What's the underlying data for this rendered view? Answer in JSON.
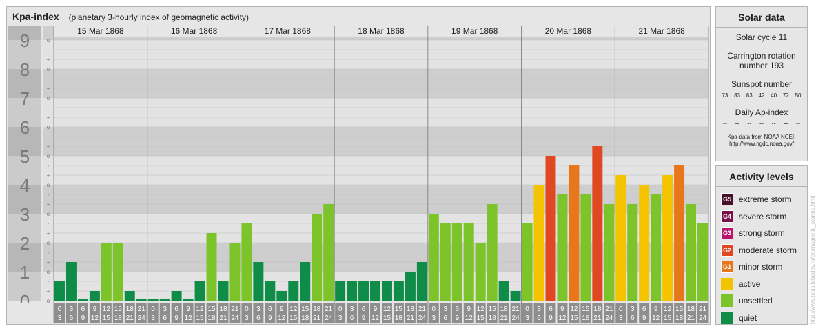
{
  "header": {
    "title": "Kpa-index",
    "subtitle": "(planetary 3-hourly index of geomagnetic activity)"
  },
  "chart_data": {
    "type": "bar",
    "title": "Kpa-index",
    "subtitle": "(planetary 3-hourly index of geomagnetic activity)",
    "ylim": [
      0,
      9
    ],
    "y_ticks": [
      "0",
      "1",
      "2",
      "3",
      "4",
      "5",
      "6",
      "7",
      "8",
      "9"
    ],
    "y_minor_labels": [
      "o",
      "+",
      "-"
    ],
    "days": [
      "15 Mar 1868",
      "16 Mar 1868",
      "17 Mar 1868",
      "18 Mar 1868",
      "19 Mar 1868",
      "20 Mar 1868",
      "21 Mar 1868"
    ],
    "interval_start": [
      "0",
      "3",
      "6",
      "9",
      "12",
      "15",
      "18",
      "21"
    ],
    "interval_end": [
      "3",
      "6",
      "9",
      "12",
      "15",
      "18",
      "21",
      "24"
    ],
    "values": [
      [
        0.667,
        1.333,
        0,
        0.333,
        2,
        2,
        0.333,
        0
      ],
      [
        0,
        0,
        0.333,
        0,
        0.667,
        2.333,
        0.667,
        2
      ],
      [
        2.667,
        1.333,
        0.667,
        0.333,
        0.667,
        1.333,
        3,
        3.333
      ],
      [
        0.667,
        0.667,
        0.667,
        0.667,
        0.667,
        0.667,
        1,
        1.333
      ],
      [
        3,
        2.667,
        2.667,
        2.667,
        2,
        3.333,
        0.667,
        0.333
      ],
      [
        2.667,
        4,
        5,
        3.667,
        4.667,
        3.667,
        5.333,
        3.333
      ],
      [
        4.333,
        3.333,
        4,
        3.667,
        4.333,
        4.667,
        3.333,
        2.667
      ]
    ],
    "grid": true
  },
  "solar": {
    "title": "Solar data",
    "cycle": "Solar cycle 11",
    "carrington_line1": "Carrington rotation",
    "carrington_line2": "number 193",
    "sunspot_label": "Sunspot number",
    "sunspot_values": [
      "73",
      "83",
      "83",
      "42",
      "40",
      "72",
      "50"
    ],
    "ap_label": "Daily Ap-index",
    "ap_values": [
      "--",
      "--",
      "--",
      "--",
      "--",
      "--",
      "--"
    ],
    "credit_line1": "Kpa-data from NOAA NCEI:",
    "credit_line2": "http://www.ngdc.noaa.gov/"
  },
  "levels": {
    "title": "Activity levels",
    "items": [
      {
        "badge": "G5",
        "label": "extreme storm",
        "color": "#4a0f2a"
      },
      {
        "badge": "G4",
        "label": "severe storm",
        "color": "#7a1048"
      },
      {
        "badge": "G3",
        "label": "strong storm",
        "color": "#b8156b"
      },
      {
        "badge": "G2",
        "label": "moderate storm",
        "color": "#e04822"
      },
      {
        "badge": "G1",
        "label": "minor storm",
        "color": "#e8761a"
      },
      {
        "badge": "",
        "label": "active",
        "color": "#f5c400"
      },
      {
        "badge": "",
        "label": "unsettled",
        "color": "#7dc32a"
      },
      {
        "badge": "",
        "label": "quiet",
        "color": "#0e8c48"
      }
    ]
  },
  "colors": {
    "quiet": "#0e8c48",
    "unsettled": "#7dc32a",
    "active": "#f5c400",
    "minor_storm": "#e8761a",
    "moderate_storm": "#e04822",
    "panel_bg": "#e6e6e6",
    "band_dark": "#cecece",
    "band_light": "#e3e3e3",
    "y_label_box": "#8e8e8e",
    "x_label_box": "#8e8e8e"
  },
  "side_credit": "http://www.tesis.lebedev.ru/en/magnetic_storms.html"
}
